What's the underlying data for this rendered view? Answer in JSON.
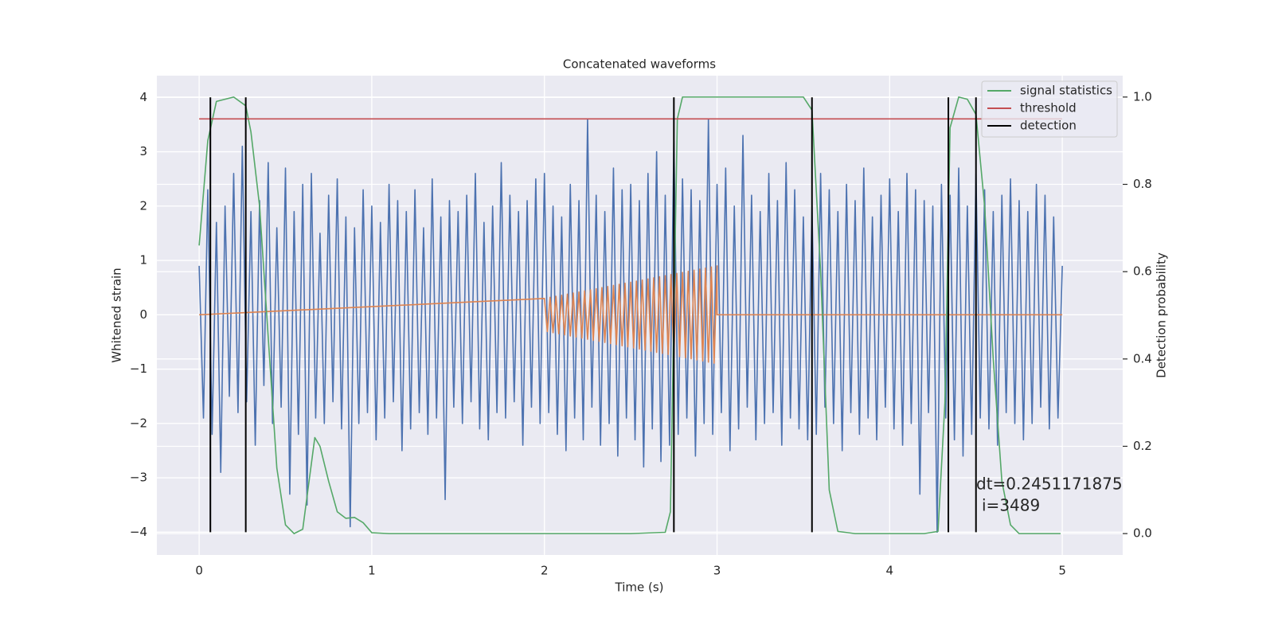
{
  "chart_data": {
    "type": "line",
    "title": "Concatenated waveforms",
    "xlabel": "Time (s)",
    "ylabel": "Whitened strain",
    "y2label": "Detection probability",
    "xlim": [
      -0.245,
      5.35
    ],
    "xticks": [
      0,
      1,
      2,
      3,
      4,
      5
    ],
    "ylim": [
      -4.42,
      4.4
    ],
    "yticks": [
      {
        "value": -4,
        "label": "−4"
      },
      {
        "value": -3,
        "label": "−3"
      },
      {
        "value": -2,
        "label": "−2"
      },
      {
        "value": -1,
        "label": "−1"
      },
      0,
      1,
      2,
      3,
      4
    ],
    "y2lim": [
      -0.049,
      1.049
    ],
    "y2ticks": [
      {
        "value": 0,
        "label": "0.0"
      },
      0.2,
      0.4,
      0.6,
      0.8,
      {
        "value": 1,
        "label": "1.0"
      }
    ],
    "grid": true,
    "legend": "upper right",
    "series": [
      {
        "color": "#4c72b0",
        "x": [
          0,
          0.025,
          0.05,
          0.075,
          0.1,
          0.125,
          0.15,
          0.175,
          0.2,
          0.225,
          0.25,
          0.275,
          0.3,
          0.325,
          0.35,
          0.375,
          0.4,
          0.425,
          0.45,
          0.475,
          0.5,
          0.525,
          0.55,
          0.575,
          0.6,
          0.625,
          0.65,
          0.675,
          0.7,
          0.725,
          0.75,
          0.775,
          0.8,
          0.825,
          0.85,
          0.875,
          0.9,
          0.925,
          0.95,
          0.975,
          1,
          1.025,
          1.05,
          1.075,
          1.1,
          1.125,
          1.15,
          1.175,
          1.2,
          1.225,
          1.25,
          1.275,
          1.3,
          1.325,
          1.35,
          1.375,
          1.4,
          1.425,
          1.45,
          1.475,
          1.5,
          1.525,
          1.55,
          1.575,
          1.6,
          1.625,
          1.65,
          1.675,
          1.7,
          1.725,
          1.75,
          1.775,
          1.8,
          1.825,
          1.85,
          1.875,
          1.9,
          1.925,
          1.95,
          1.975,
          2,
          2.025,
          2.05,
          2.075,
          2.1,
          2.125,
          2.15,
          2.175,
          2.2,
          2.225,
          2.25,
          2.275,
          2.3,
          2.325,
          2.35,
          2.375,
          2.4,
          2.425,
          2.45,
          2.475,
          2.5,
          2.525,
          2.55,
          2.575,
          2.6,
          2.625,
          2.65,
          2.675,
          2.7,
          2.725,
          2.75,
          2.775,
          2.8,
          2.825,
          2.85,
          2.875,
          2.9,
          2.925,
          2.95,
          2.975,
          3,
          3.025,
          3.05,
          3.075,
          3.1,
          3.125,
          3.15,
          3.175,
          3.2,
          3.225,
          3.25,
          3.275,
          3.3,
          3.325,
          3.35,
          3.375,
          3.4,
          3.425,
          3.45,
          3.475,
          3.5,
          3.525,
          3.55,
          3.575,
          3.6,
          3.625,
          3.65,
          3.675,
          3.7,
          3.725,
          3.75,
          3.775,
          3.8,
          3.825,
          3.85,
          3.875,
          3.9,
          3.925,
          3.95,
          3.975,
          4,
          4.025,
          4.05,
          4.075,
          4.1,
          4.125,
          4.15,
          4.175,
          4.2,
          4.225,
          4.25,
          4.275,
          4.3,
          4.325,
          4.35,
          4.375,
          4.4,
          4.425,
          4.45,
          4.475,
          4.5,
          4.525,
          4.55,
          4.575,
          4.6,
          4.625,
          4.65,
          4.675,
          4.7,
          4.725,
          4.75,
          4.775,
          4.8,
          4.825,
          4.85,
          4.875,
          4.9,
          4.925,
          4.95,
          4.975,
          5
        ],
        "values": [
          0.9,
          -1.9,
          2.3,
          -2.2,
          1.7,
          -2.9,
          2.0,
          -1.5,
          2.6,
          -1.8,
          3.1,
          -1.6,
          1.9,
          -2.4,
          2.1,
          -1.3,
          2.8,
          -2.0,
          1.6,
          -1.7,
          2.7,
          -3.3,
          1.9,
          -2.2,
          2.4,
          -3.5,
          2.6,
          -1.9,
          1.5,
          -2.0,
          2.2,
          -1.6,
          2.5,
          -2.1,
          1.8,
          -3.9,
          1.6,
          -2.0,
          2.3,
          -1.8,
          2.0,
          -2.3,
          1.7,
          -1.9,
          2.4,
          -1.6,
          2.1,
          -2.5,
          1.9,
          -2.1,
          2.3,
          -1.8,
          1.6,
          -2.2,
          2.5,
          -1.9,
          1.8,
          -3.4,
          2.1,
          -1.7,
          1.9,
          -2.0,
          2.2,
          -1.6,
          2.6,
          -2.1,
          1.7,
          -2.3,
          2.0,
          -1.8,
          2.8,
          -1.9,
          2.2,
          -1.6,
          1.9,
          -2.4,
          2.1,
          -1.7,
          2.5,
          -2.0,
          2.6,
          -1.8,
          2.0,
          -2.2,
          1.8,
          -2.5,
          2.4,
          -1.9,
          2.1,
          -2.3,
          3.6,
          -1.7,
          2.2,
          -2.4,
          1.9,
          -2.0,
          2.7,
          -2.6,
          2.3,
          -1.9,
          2.4,
          -2.3,
          2.1,
          -2.8,
          2.6,
          -2.1,
          3.0,
          -2.7,
          2.2,
          -2.4,
          3.2,
          -2.2,
          2.5,
          -1.9,
          2.3,
          -2.6,
          2.1,
          -2.0,
          3.6,
          -2.2,
          2.4,
          -1.8,
          2.7,
          -2.5,
          2.0,
          -2.1,
          3.3,
          -1.7,
          2.2,
          -2.3,
          1.9,
          -2.0,
          2.6,
          -1.8,
          2.1,
          -2.4,
          2.8,
          -1.9,
          2.3,
          -2.1,
          1.8,
          -2.3,
          2.0,
          -2.2,
          2.6,
          -1.7,
          2.3,
          -2.0,
          1.9,
          -2.5,
          2.4,
          -1.8,
          2.1,
          -2.2,
          2.7,
          -1.9,
          1.8,
          -2.3,
          2.2,
          -1.7,
          2.5,
          -2.1,
          1.9,
          -2.4,
          2.6,
          -2.0,
          2.3,
          -3.3,
          2.1,
          -1.8,
          2.0,
          -4.0,
          2.4,
          -1.9,
          2.2,
          -2.3,
          2.7,
          -2.6,
          2.0,
          -2.2,
          2.6,
          -1.9,
          2.3,
          -2.1,
          1.9,
          -2.4,
          2.2,
          -1.8,
          2.5,
          -2.0,
          2.1,
          -2.3,
          1.9,
          -2.0,
          2.4,
          -1.7,
          2.2,
          -2.1,
          1.8,
          -1.9,
          0.9
        ]
      },
      {
        "color": "#dd8452",
        "x": [
          0,
          2,
          2.017,
          2.033,
          2.05,
          2.067,
          2.083,
          2.1,
          2.117,
          2.133,
          2.15,
          2.167,
          2.183,
          2.2,
          2.217,
          2.233,
          2.25,
          2.267,
          2.283,
          2.3,
          2.317,
          2.333,
          2.35,
          2.367,
          2.383,
          2.4,
          2.417,
          2.433,
          2.45,
          2.467,
          2.483,
          2.5,
          2.517,
          2.533,
          2.55,
          2.567,
          2.583,
          2.6,
          2.617,
          2.633,
          2.65,
          2.667,
          2.683,
          2.7,
          2.717,
          2.733,
          2.75,
          2.767,
          2.783,
          2.8,
          2.817,
          2.833,
          2.85,
          2.867,
          2.883,
          2.9,
          2.917,
          2.933,
          2.95,
          2.967,
          2.983,
          3,
          3,
          5
        ],
        "values": [
          0,
          0.3,
          -0.31,
          0.32,
          -0.33,
          0.34,
          -0.35,
          0.36,
          -0.37,
          0.38,
          -0.39,
          0.4,
          -0.41,
          0.42,
          -0.43,
          0.44,
          -0.45,
          0.46,
          -0.47,
          0.48,
          -0.49,
          0.5,
          -0.51,
          0.52,
          -0.53,
          0.54,
          -0.55,
          0.56,
          -0.57,
          0.58,
          -0.59,
          0.6,
          -0.61,
          0.62,
          -0.63,
          0.64,
          -0.65,
          0.66,
          -0.67,
          0.68,
          -0.69,
          0.7,
          -0.71,
          0.72,
          -0.73,
          0.74,
          -0.75,
          0.76,
          -0.77,
          0.78,
          -0.79,
          0.8,
          -0.81,
          0.82,
          -0.83,
          0.84,
          -0.85,
          0.86,
          -0.87,
          0.88,
          -0.89,
          0.9,
          0,
          0
        ]
      },
      {
        "name": "signal statistics",
        "color": "#55a868",
        "axis": "y2",
        "x": [
          0,
          0.05,
          0.1,
          0.2,
          0.27,
          0.3,
          0.35,
          0.4,
          0.45,
          0.5,
          0.55,
          0.6,
          0.63,
          0.67,
          0.7,
          0.75,
          0.8,
          0.85,
          0.9,
          0.95,
          1.0,
          1.1,
          2.5,
          2.7,
          2.73,
          2.75,
          2.77,
          2.8,
          3.5,
          3.55,
          3.6,
          3.65,
          3.7,
          3.8,
          4.2,
          4.28,
          4.32,
          4.35,
          4.4,
          4.45,
          4.5,
          4.55,
          4.6,
          4.65,
          4.7,
          4.75,
          4.99
        ],
        "values": [
          0.66,
          0.9,
          0.99,
          1.0,
          0.98,
          0.92,
          0.75,
          0.45,
          0.15,
          0.02,
          0.0,
          0.01,
          0.1,
          0.22,
          0.2,
          0.12,
          0.05,
          0.035,
          0.037,
          0.025,
          0.002,
          0,
          0,
          0.003,
          0.05,
          0.5,
          0.95,
          1.0,
          1.0,
          0.97,
          0.6,
          0.1,
          0.005,
          0,
          0,
          0.005,
          0.3,
          0.93,
          1.0,
          0.995,
          0.96,
          0.75,
          0.4,
          0.12,
          0.02,
          0,
          0
        ]
      },
      {
        "name": "threshold",
        "color": "#c44e52",
        "axis": "y2",
        "x": [
          0,
          5
        ],
        "values": [
          0.95,
          0.95
        ]
      }
    ],
    "detections": {
      "name": "detection",
      "color": "#000000",
      "x": [
        0.065,
        0.27,
        2.75,
        3.55,
        4.34,
        4.5
      ],
      "ymin": -4,
      "ymax": 4
    },
    "annotation": [
      "dt=0.2451171875",
      "i=3489"
    ]
  }
}
